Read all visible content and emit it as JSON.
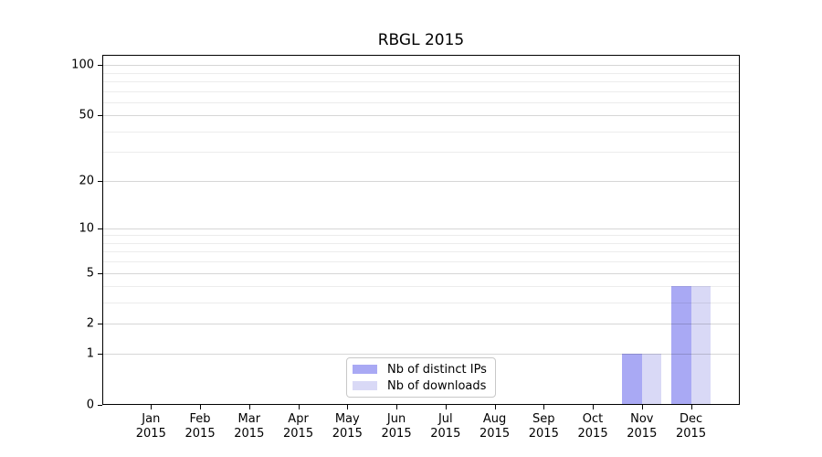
{
  "title": "RBGL 2015",
  "chart_data": {
    "type": "bar",
    "title": "RBGL 2015",
    "categories": [
      "Jan",
      "Feb",
      "Mar",
      "Apr",
      "May",
      "Jun",
      "Jul",
      "Aug",
      "Sep",
      "Oct",
      "Nov",
      "Dec"
    ],
    "category_year": "2015",
    "series": [
      {
        "name": "Nb of distinct IPs",
        "color": "#a9a9f4",
        "values": [
          0,
          0,
          0,
          0,
          0,
          0,
          0,
          0,
          0,
          0,
          1,
          4
        ]
      },
      {
        "name": "Nb of downloads",
        "color": "#d9d9f6",
        "values": [
          0,
          0,
          0,
          0,
          0,
          0,
          0,
          0,
          0,
          0,
          1,
          4
        ]
      }
    ],
    "yscale": "log1p",
    "ylim": [
      0,
      115
    ],
    "y_major_ticks": [
      0,
      1,
      2,
      5,
      10,
      20,
      50,
      100
    ],
    "y_minor_ticks": [
      3,
      4,
      6,
      7,
      8,
      9,
      30,
      40,
      60,
      70,
      80,
      90
    ],
    "grid": "both",
    "legend_position": "lower center"
  },
  "legend": {
    "items": [
      {
        "label": "Nb of distinct IPs",
        "color": "#a9a9f4"
      },
      {
        "label": "Nb of downloads",
        "color": "#d9d9f6"
      }
    ]
  },
  "colors": {
    "background": "#ffffff",
    "axis": "#000000",
    "grid_major": "rgba(0,0,0,0.16)",
    "grid_minor": "rgba(0,0,0,0.075)",
    "text": "#000000",
    "legend_border": "#c8c8c8"
  }
}
